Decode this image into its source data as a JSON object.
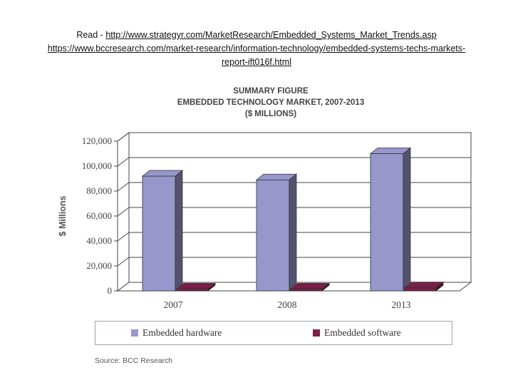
{
  "header": {
    "read_label": "Read -",
    "link1": "http://www.strategyr.com/MarketResearch/Embedded_Systems_Market_Trends.asp",
    "link2": "https://www.bccresearch.com/market-research/information-technology/embedded-systems-techs-markets-report-ift016f.html"
  },
  "chart_data": {
    "type": "bar",
    "title_line1": "SUMMARY FIGURE",
    "title_line2": "EMBEDDED TECHNOLOGY MARKET, 2007-2013",
    "title_line3": "($ MILLIONS)",
    "categories": [
      "2007",
      "2008",
      "2013"
    ],
    "series": [
      {
        "name": "Embedded hardware",
        "values": [
          92000,
          89000,
          110000
        ],
        "color": "#9797cc"
      },
      {
        "name": "Embedded software",
        "values": [
          1500,
          1500,
          2500
        ],
        "color": "#7a1f47"
      }
    ],
    "ylabel": "$ Millions",
    "ylim": [
      0,
      120000
    ],
    "yticks": [
      "0",
      "20,000",
      "40,000",
      "60,000",
      "80,000",
      "100,000",
      "120,000"
    ],
    "grid": true,
    "legend": "bottom"
  },
  "source": "Source: BCC Research"
}
